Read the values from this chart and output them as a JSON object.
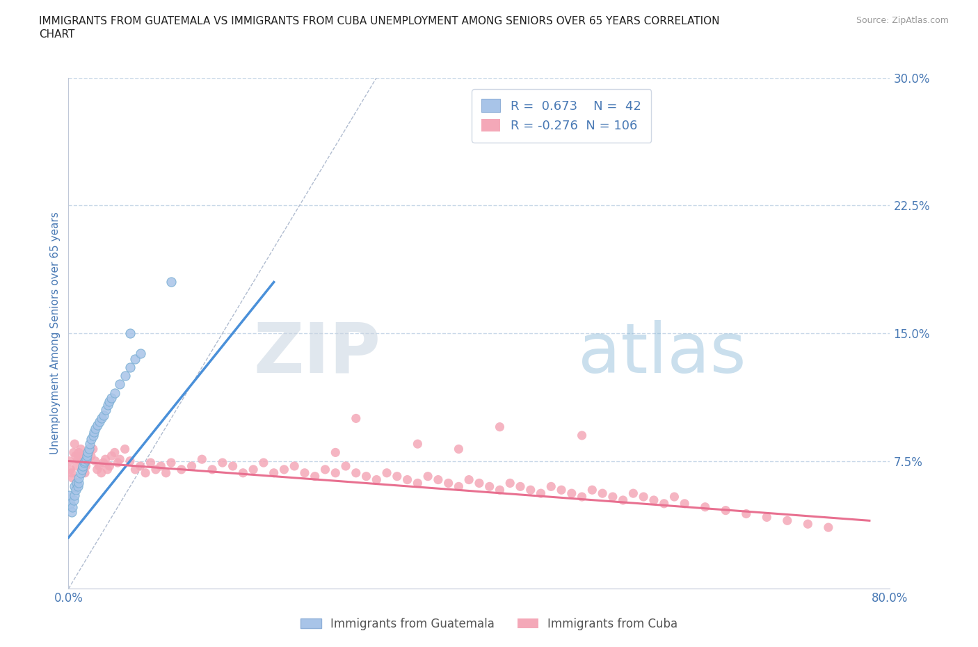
{
  "title_line1": "IMMIGRANTS FROM GUATEMALA VS IMMIGRANTS FROM CUBA UNEMPLOYMENT AMONG SENIORS OVER 65 YEARS CORRELATION",
  "title_line2": "CHART",
  "source": "Source: ZipAtlas.com",
  "ylabel": "Unemployment Among Seniors over 65 years",
  "xlim": [
    0,
    0.8
  ],
  "ylim": [
    0,
    0.3
  ],
  "yticks": [
    0.0,
    0.075,
    0.15,
    0.225,
    0.3
  ],
  "xtick_vals": [
    0.0,
    0.1,
    0.2,
    0.3,
    0.4,
    0.5,
    0.6,
    0.7,
    0.8
  ],
  "guatemala_R": 0.673,
  "guatemala_N": 42,
  "cuba_R": -0.276,
  "cuba_N": 106,
  "guatemala_color": "#a8c4e8",
  "cuba_color": "#f4a8b8",
  "guatemala_line_color": "#4a90d9",
  "cuba_line_color": "#e87090",
  "watermark_zip": "ZIP",
  "watermark_atlas": "atlas",
  "background_color": "#ffffff",
  "grid_color": "#c8d8e8",
  "axis_color": "#4a7ab5",
  "tick_color": "#4a7ab5",
  "guatemala_x": [
    0.001,
    0.002,
    0.003,
    0.004,
    0.005,
    0.006,
    0.006,
    0.007,
    0.008,
    0.009,
    0.01,
    0.01,
    0.012,
    0.013,
    0.014,
    0.015,
    0.016,
    0.017,
    0.018,
    0.019,
    0.02,
    0.021,
    0.022,
    0.024,
    0.025,
    0.026,
    0.028,
    0.03,
    0.032,
    0.034,
    0.036,
    0.038,
    0.04,
    0.042,
    0.045,
    0.05,
    0.055,
    0.06,
    0.065,
    0.07,
    0.06,
    0.1
  ],
  "guatemala_y": [
    0.055,
    0.05,
    0.045,
    0.048,
    0.052,
    0.055,
    0.06,
    0.058,
    0.062,
    0.06,
    0.062,
    0.065,
    0.068,
    0.07,
    0.072,
    0.074,
    0.075,
    0.076,
    0.078,
    0.08,
    0.082,
    0.085,
    0.088,
    0.09,
    0.092,
    0.094,
    0.096,
    0.098,
    0.1,
    0.102,
    0.105,
    0.108,
    0.11,
    0.112,
    0.115,
    0.12,
    0.125,
    0.13,
    0.135,
    0.138,
    0.15,
    0.18
  ],
  "cuba_x": [
    0.001,
    0.002,
    0.003,
    0.004,
    0.005,
    0.006,
    0.007,
    0.008,
    0.009,
    0.01,
    0.011,
    0.012,
    0.013,
    0.014,
    0.015,
    0.016,
    0.017,
    0.018,
    0.02,
    0.022,
    0.024,
    0.026,
    0.028,
    0.03,
    0.032,
    0.034,
    0.036,
    0.038,
    0.04,
    0.042,
    0.045,
    0.048,
    0.05,
    0.055,
    0.06,
    0.065,
    0.07,
    0.075,
    0.08,
    0.085,
    0.09,
    0.095,
    0.1,
    0.11,
    0.12,
    0.13,
    0.14,
    0.15,
    0.16,
    0.17,
    0.18,
    0.19,
    0.2,
    0.21,
    0.22,
    0.23,
    0.24,
    0.25,
    0.26,
    0.27,
    0.28,
    0.29,
    0.3,
    0.31,
    0.32,
    0.33,
    0.34,
    0.35,
    0.36,
    0.37,
    0.38,
    0.39,
    0.4,
    0.41,
    0.42,
    0.43,
    0.44,
    0.45,
    0.46,
    0.47,
    0.48,
    0.49,
    0.5,
    0.51,
    0.52,
    0.53,
    0.54,
    0.55,
    0.56,
    0.57,
    0.58,
    0.59,
    0.6,
    0.62,
    0.64,
    0.66,
    0.68,
    0.7,
    0.72,
    0.74,
    0.28,
    0.42,
    0.5,
    0.34,
    0.26,
    0.38
  ],
  "cuba_y": [
    0.075,
    0.07,
    0.068,
    0.065,
    0.08,
    0.085,
    0.078,
    0.072,
    0.076,
    0.08,
    0.078,
    0.082,
    0.076,
    0.07,
    0.074,
    0.068,
    0.072,
    0.076,
    0.08,
    0.078,
    0.082,
    0.075,
    0.07,
    0.072,
    0.068,
    0.074,
    0.076,
    0.07,
    0.072,
    0.078,
    0.08,
    0.074,
    0.076,
    0.082,
    0.075,
    0.07,
    0.072,
    0.068,
    0.074,
    0.07,
    0.072,
    0.068,
    0.074,
    0.07,
    0.072,
    0.076,
    0.07,
    0.074,
    0.072,
    0.068,
    0.07,
    0.074,
    0.068,
    0.07,
    0.072,
    0.068,
    0.066,
    0.07,
    0.068,
    0.072,
    0.068,
    0.066,
    0.064,
    0.068,
    0.066,
    0.064,
    0.062,
    0.066,
    0.064,
    0.062,
    0.06,
    0.064,
    0.062,
    0.06,
    0.058,
    0.062,
    0.06,
    0.058,
    0.056,
    0.06,
    0.058,
    0.056,
    0.054,
    0.058,
    0.056,
    0.054,
    0.052,
    0.056,
    0.054,
    0.052,
    0.05,
    0.054,
    0.05,
    0.048,
    0.046,
    0.044,
    0.042,
    0.04,
    0.038,
    0.036,
    0.1,
    0.095,
    0.09,
    0.085,
    0.08,
    0.082
  ],
  "diag_line_color": "#b0bcd0",
  "guatemala_trend_x": [
    0.0,
    0.2
  ],
  "guatemala_trend_y": [
    0.03,
    0.18
  ],
  "cuba_trend_x": [
    0.0,
    0.78
  ],
  "cuba_trend_y": [
    0.075,
    0.04
  ]
}
